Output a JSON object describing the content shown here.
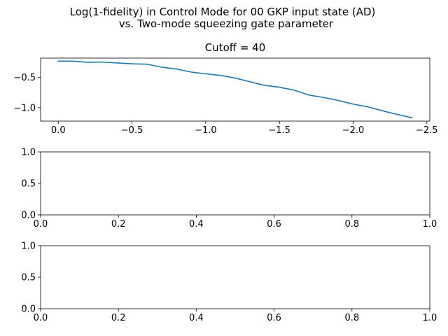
{
  "figure": {
    "suptitle_line1": "Log(1-fidelity) in Control Mode for 00 GKP input state (AD)",
    "suptitle_line2": "vs. Two-mode squeezing gate parameter"
  },
  "chart_data": [
    {
      "type": "line",
      "title": "Cutoff = 40",
      "xlabel": "",
      "ylabel": "",
      "xlim": [
        0.12,
        -2.52
      ],
      "ylim": [
        -1.22,
        -0.18
      ],
      "xticks": [
        0.0,
        -0.5,
        -1.0,
        -1.5,
        -2.0,
        -2.5
      ],
      "xtick_labels": [
        "0.0",
        "−0.5",
        "−1.0",
        "−1.5",
        "−2.0",
        "−2.5"
      ],
      "yticks": [
        -0.5,
        -1.0
      ],
      "ytick_labels": [
        "−0.5",
        "−1.0"
      ],
      "grid": false,
      "series": [
        {
          "color": "#1f77b4",
          "x": [
            0.0,
            -0.1,
            -0.2,
            -0.3,
            -0.4,
            -0.5,
            -0.6,
            -0.7,
            -0.8,
            -0.9,
            -1.0,
            -1.1,
            -1.2,
            -1.3,
            -1.4,
            -1.5,
            -1.6,
            -1.7,
            -1.8,
            -1.9,
            -2.0,
            -2.1,
            -2.2,
            -2.3,
            -2.4
          ],
          "y": [
            -0.23,
            -0.23,
            -0.25,
            -0.245,
            -0.26,
            -0.275,
            -0.28,
            -0.33,
            -0.36,
            -0.41,
            -0.44,
            -0.465,
            -0.51,
            -0.57,
            -0.63,
            -0.66,
            -0.71,
            -0.79,
            -0.83,
            -0.88,
            -0.94,
            -0.985,
            -1.05,
            -1.11,
            -1.165
          ]
        }
      ]
    },
    {
      "type": "line",
      "title": "",
      "xlabel": "",
      "ylabel": "",
      "xlim": [
        0.0,
        1.0
      ],
      "ylim": [
        0.0,
        1.0
      ],
      "xticks": [
        0.0,
        0.2,
        0.4,
        0.6,
        0.8,
        1.0
      ],
      "xtick_labels": [
        "0.0",
        "0.2",
        "0.4",
        "0.6",
        "0.8",
        "1.0"
      ],
      "yticks": [
        0.0,
        0.5,
        1.0
      ],
      "ytick_labels": [
        "0.0",
        "0.5",
        "1.0"
      ],
      "grid": false,
      "series": []
    },
    {
      "type": "line",
      "title": "",
      "xlabel": "",
      "ylabel": "",
      "xlim": [
        0.0,
        1.0
      ],
      "ylim": [
        0.0,
        1.0
      ],
      "xticks": [
        0.0,
        0.2,
        0.4,
        0.6,
        0.8,
        1.0
      ],
      "xtick_labels": [
        "0.0",
        "0.2",
        "0.4",
        "0.6",
        "0.8",
        "1.0"
      ],
      "yticks": [
        0.0,
        0.5,
        1.0
      ],
      "ytick_labels": [
        "0.0",
        "0.5",
        "1.0"
      ],
      "grid": false,
      "series": []
    }
  ]
}
